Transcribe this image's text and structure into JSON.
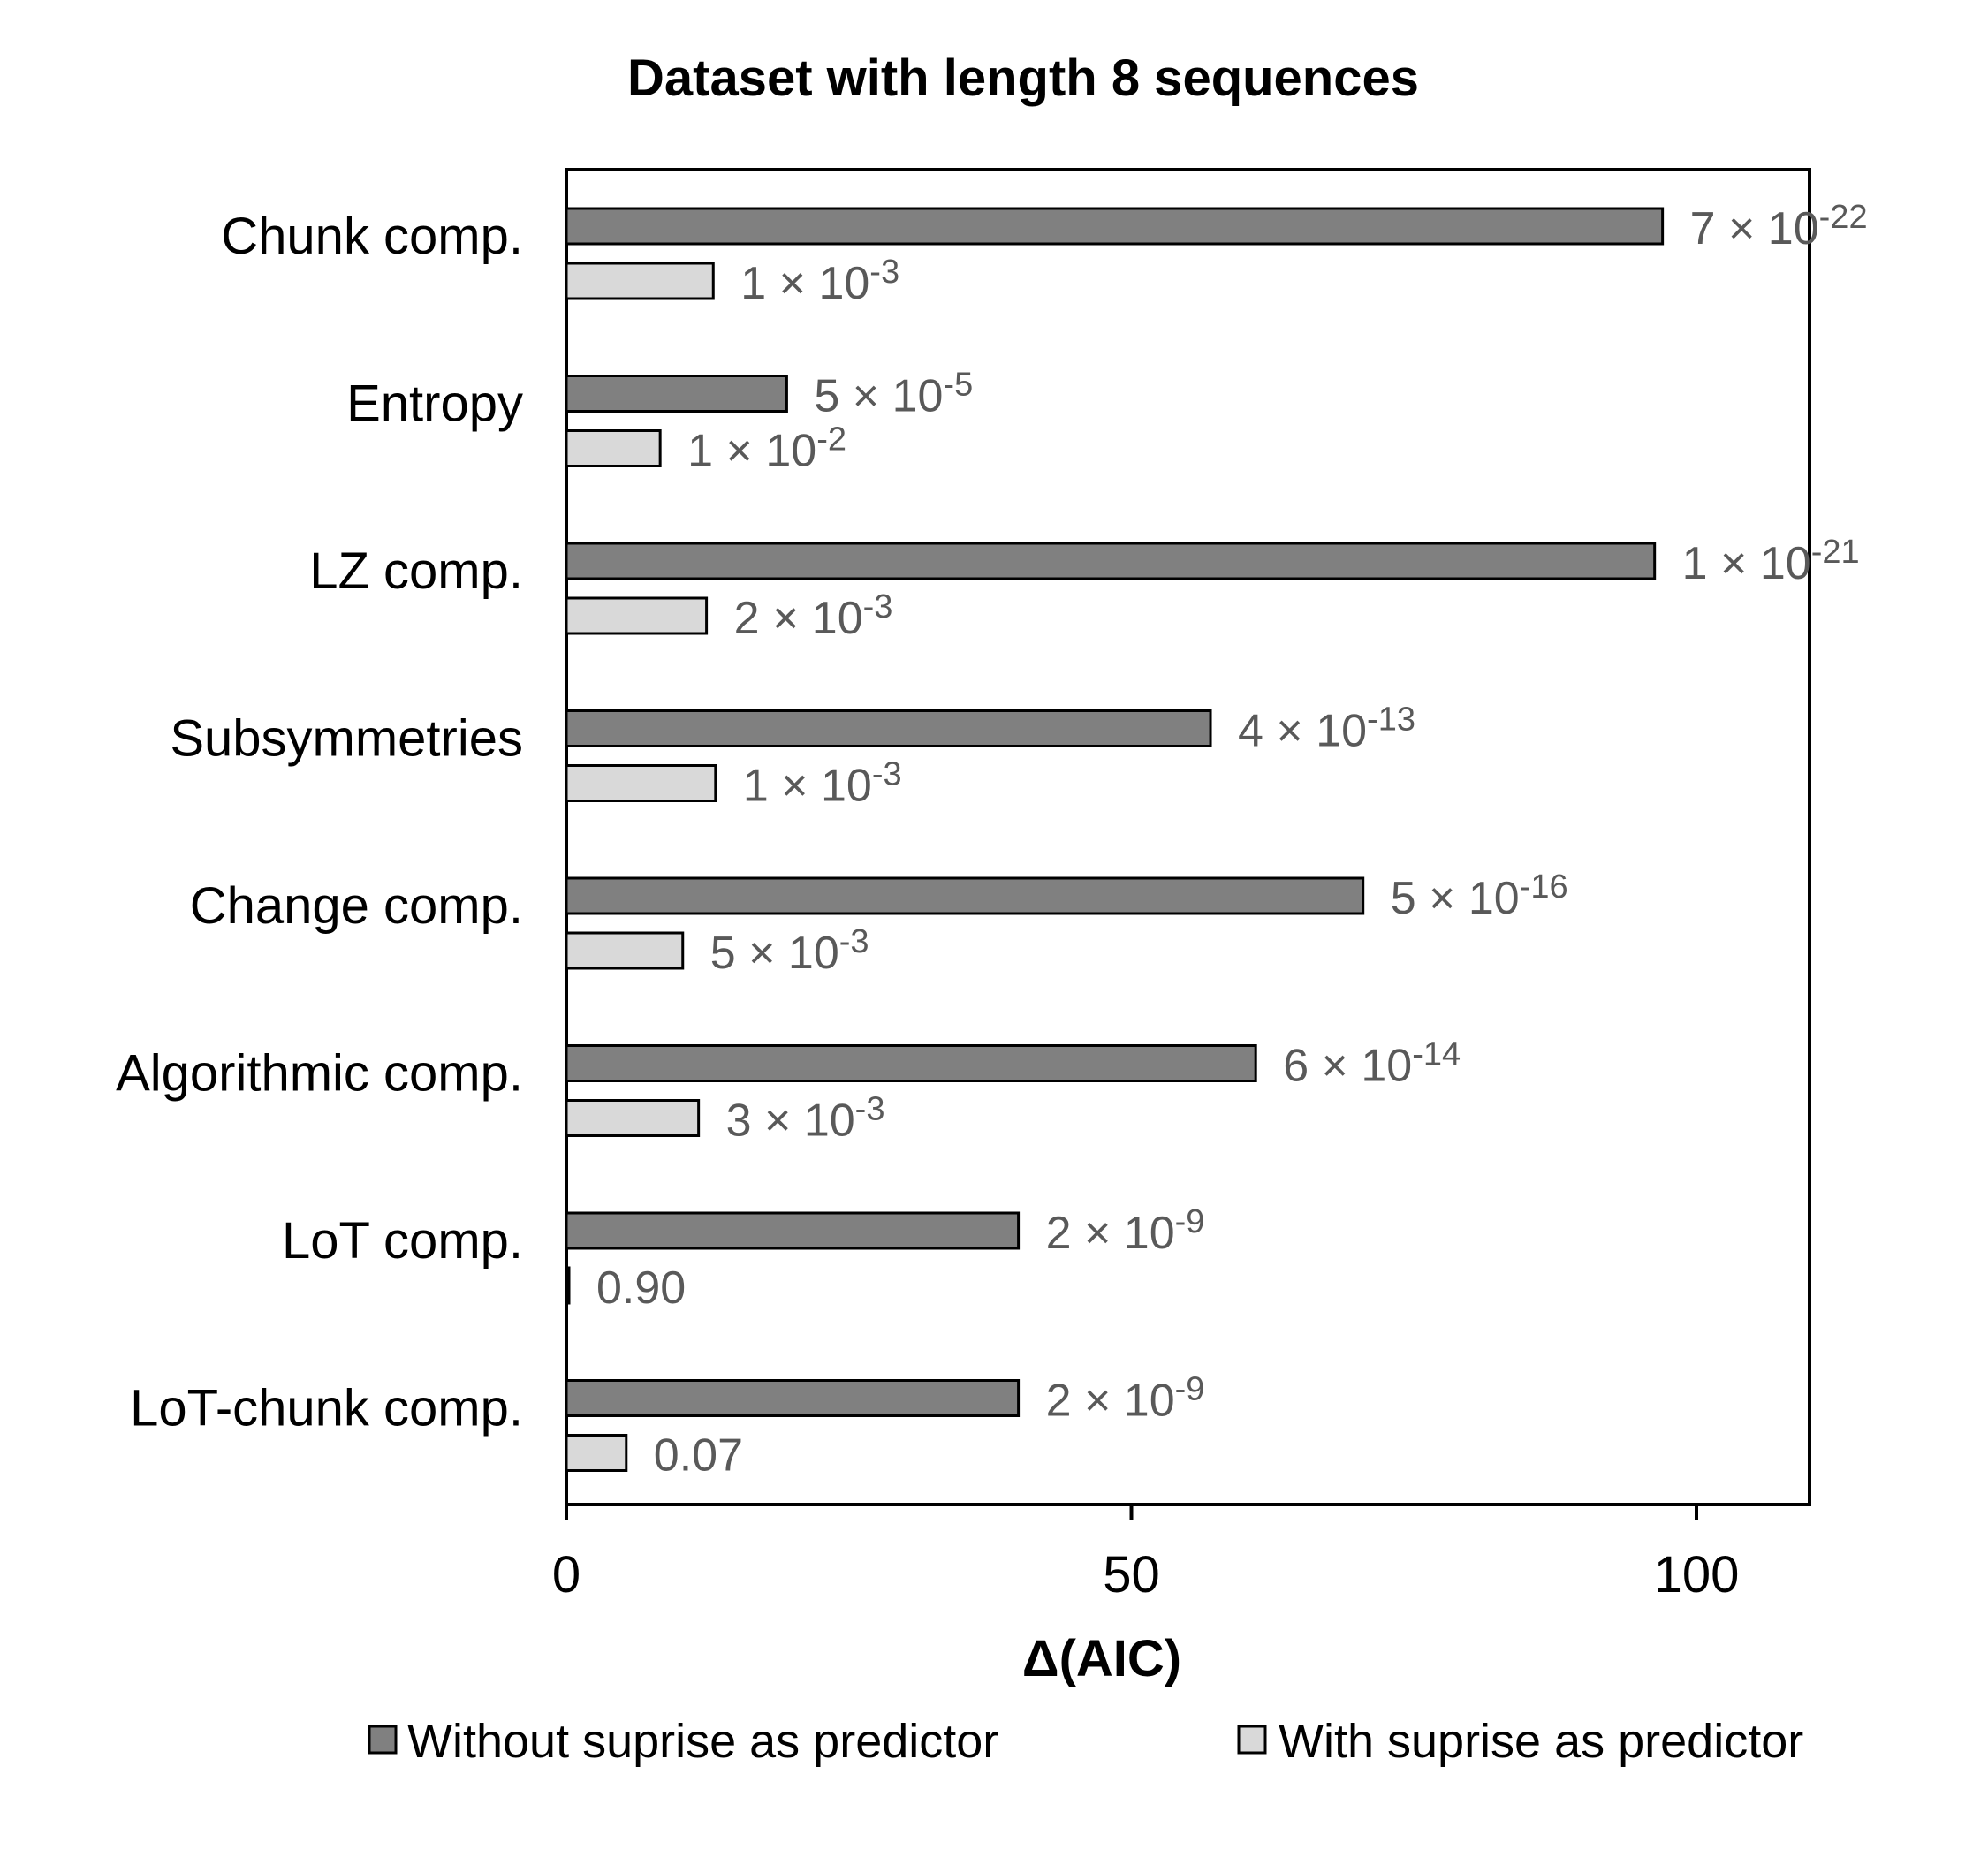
{
  "chart_data": {
    "type": "bar",
    "orientation": "horizontal",
    "title": "Dataset with length 8 sequences",
    "xlabel": "Δ(AIC)",
    "ylabel": "",
    "xlim": [
      0,
      110
    ],
    "xticks": [
      "0",
      "50",
      "100"
    ],
    "grid": false,
    "legend_position": "bottom",
    "categories": [
      "Chunk comp.",
      "Entropy",
      "LZ comp.",
      "Subsymmetries",
      "Change comp.",
      "Algorithmic comp.",
      "LoT comp.",
      "LoT-chunk comp."
    ],
    "series": [
      {
        "name": "Without suprise as predictor",
        "color": "#808080",
        "values": [
          97,
          19.5,
          96.3,
          57,
          70.5,
          61,
          40,
          40
        ],
        "labels": [
          {
            "base": "7 × 10",
            "exp": "-22"
          },
          {
            "base": "5 × 10",
            "exp": "-5"
          },
          {
            "base": "1 × 10",
            "exp": "-21"
          },
          {
            "base": "4 × 10",
            "exp": "-13"
          },
          {
            "base": "5 × 10",
            "exp": "-16"
          },
          {
            "base": "6 × 10",
            "exp": "-14"
          },
          {
            "base": "2 × 10",
            "exp": "-9"
          },
          {
            "base": "2 × 10",
            "exp": "-9"
          }
        ]
      },
      {
        "name": "With suprise as predictor",
        "color": "#d9d9d9",
        "values": [
          13,
          8.3,
          12.4,
          13.2,
          10.3,
          11.7,
          0.2,
          5.3
        ],
        "labels": [
          {
            "base": "1 × 10",
            "exp": "-3"
          },
          {
            "base": "1 × 10",
            "exp": "-2"
          },
          {
            "base": "2 × 10",
            "exp": "-3"
          },
          {
            "base": "1 × 10",
            "exp": "-3"
          },
          {
            "base": "5 × 10",
            "exp": "-3"
          },
          {
            "base": "3 × 10",
            "exp": "-3"
          },
          {
            "base": "0.90",
            "exp": ""
          },
          {
            "base": "0.07",
            "exp": ""
          }
        ]
      }
    ]
  }
}
